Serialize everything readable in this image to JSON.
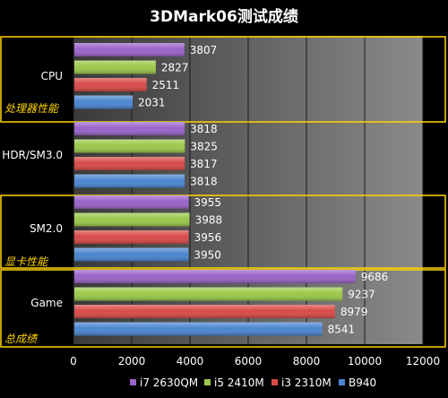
{
  "chart_data": {
    "type": "bar",
    "orientation": "horizontal",
    "title": "3DMark06测试成绩",
    "categories": [
      "CPU",
      "HDR/SM3.0",
      "SM2.0",
      "Game"
    ],
    "series": [
      {
        "name": "i7 2630QM",
        "color": "#9a63c9",
        "values": [
          3807,
          3818,
          3955,
          9686
        ]
      },
      {
        "name": "i5 2410M",
        "color": "#9bc84a",
        "values": [
          2827,
          3825,
          3988,
          9237
        ]
      },
      {
        "name": "i3 2310M",
        "color": "#d84a47",
        "values": [
          2511,
          3817,
          3956,
          8979
        ]
      },
      {
        "name": "B940",
        "color": "#4a86d0",
        "values": [
          2031,
          3818,
          3950,
          8541
        ]
      }
    ],
    "xlim": [
      0,
      12000
    ],
    "xticks": [
      0,
      2000,
      4000,
      6000,
      8000,
      10000,
      12000
    ],
    "grid": true,
    "legend_position": "bottom",
    "section_labels": [
      "处理器性能",
      "显卡性能",
      "总成绩"
    ],
    "section_box_color": "#ffd400"
  }
}
